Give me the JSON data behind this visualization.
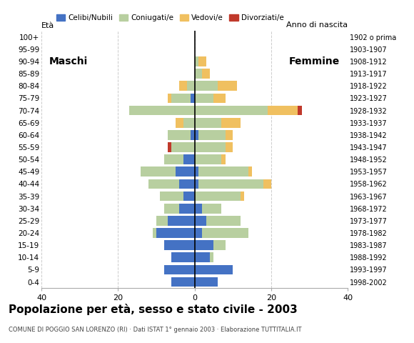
{
  "age_groups": [
    "0-4",
    "5-9",
    "10-14",
    "15-19",
    "20-24",
    "25-29",
    "30-34",
    "35-39",
    "40-44",
    "45-49",
    "50-54",
    "55-59",
    "60-64",
    "65-69",
    "70-74",
    "75-79",
    "80-84",
    "85-89",
    "90-94",
    "95-99",
    "100+"
  ],
  "birth_years": [
    "1998-2002",
    "1993-1997",
    "1988-1992",
    "1983-1987",
    "1978-1982",
    "1973-1977",
    "1968-1972",
    "1963-1967",
    "1958-1962",
    "1953-1957",
    "1948-1952",
    "1943-1947",
    "1938-1942",
    "1933-1937",
    "1928-1932",
    "1923-1927",
    "1918-1922",
    "1913-1917",
    "1908-1912",
    "1903-1907",
    "1902 o prima"
  ],
  "maschi": {
    "celibe": [
      6,
      8,
      6,
      8,
      10,
      7,
      4,
      3,
      4,
      5,
      3,
      0,
      1,
      0,
      0,
      1,
      0,
      0,
      0,
      0,
      0
    ],
    "coniugato": [
      0,
      0,
      0,
      0,
      1,
      3,
      4,
      6,
      8,
      9,
      5,
      6,
      6,
      3,
      17,
      5,
      2,
      0,
      0,
      0,
      0
    ],
    "vedovo": [
      0,
      0,
      0,
      0,
      0,
      0,
      0,
      0,
      0,
      0,
      0,
      0,
      0,
      2,
      0,
      1,
      2,
      0,
      0,
      0,
      0
    ],
    "divorziato": [
      0,
      0,
      0,
      0,
      0,
      0,
      0,
      0,
      0,
      0,
      0,
      1,
      0,
      0,
      0,
      0,
      0,
      0,
      0,
      0,
      0
    ]
  },
  "femmine": {
    "celibe": [
      6,
      10,
      4,
      5,
      2,
      3,
      2,
      0,
      1,
      1,
      0,
      0,
      1,
      0,
      0,
      0,
      0,
      0,
      0,
      0,
      0
    ],
    "coniugato": [
      0,
      0,
      1,
      3,
      12,
      9,
      5,
      12,
      17,
      13,
      7,
      8,
      7,
      7,
      19,
      5,
      6,
      2,
      1,
      0,
      0
    ],
    "vedovo": [
      0,
      0,
      0,
      0,
      0,
      0,
      0,
      1,
      2,
      1,
      1,
      2,
      2,
      5,
      8,
      3,
      5,
      2,
      2,
      0,
      0
    ],
    "divorziato": [
      0,
      0,
      0,
      0,
      0,
      0,
      0,
      0,
      0,
      0,
      0,
      0,
      0,
      0,
      1,
      0,
      0,
      0,
      0,
      0,
      0
    ]
  },
  "colors": {
    "celibe": "#4472c4",
    "coniugato": "#b8cfa0",
    "vedovo": "#f0c060",
    "divorziato": "#c0392b"
  },
  "legend_labels": [
    "Celibi/Nubili",
    "Coniugati/e",
    "Vedovi/e",
    "Divorziati/e"
  ],
  "title": "Popolazione per età, sesso e stato civile - 2003",
  "subtitle": "COMUNE DI POGGIO SAN LORENZO (RI) · Dati ISTAT 1° gennaio 2003 · Elaborazione TUTTITALIA.IT",
  "label_maschi": "Maschi",
  "label_femmine": "Femmine",
  "label_eta": "Età",
  "label_anno": "Anno di nascita",
  "xlim": 40,
  "background_color": "#ffffff",
  "grid_color": "#cccccc"
}
